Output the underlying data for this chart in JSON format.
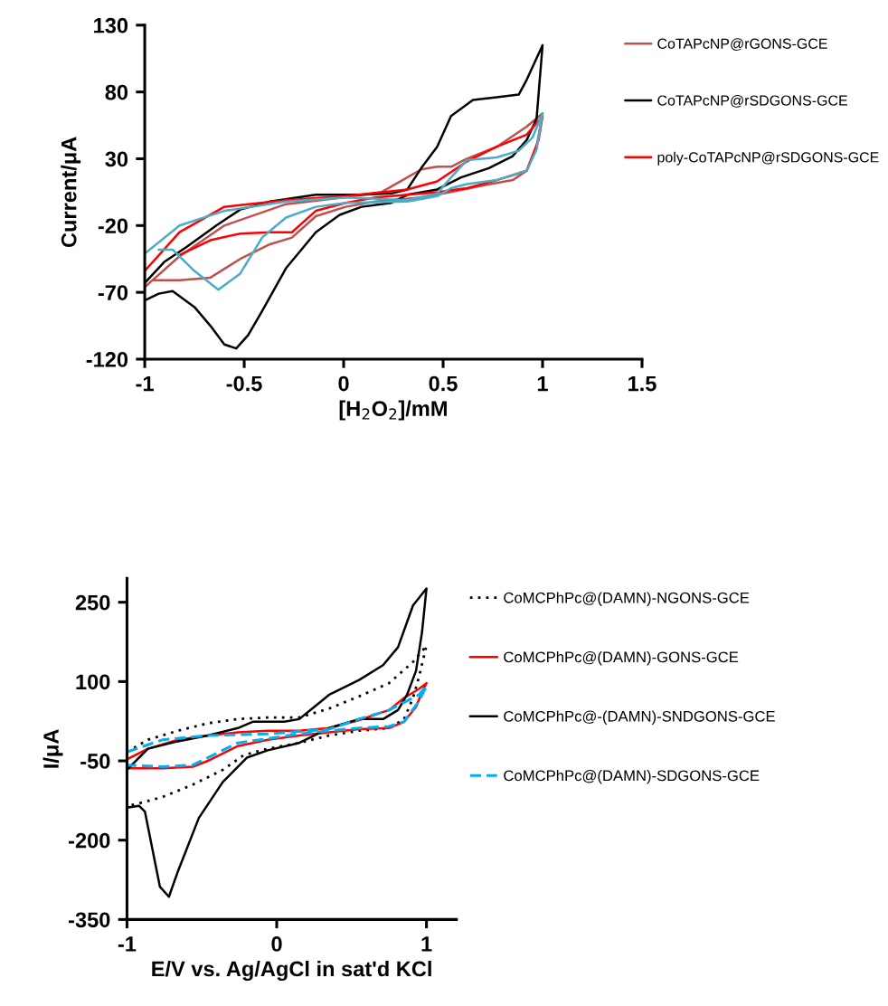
{
  "chart_data": [
    {
      "type": "line",
      "xlabel": "[H$_{2}$O$_{2}$]/mM",
      "ylabel": "Current/μA",
      "xlim": [
        -1,
        1.5
      ],
      "xticks": [
        -1,
        -0.5,
        0,
        0.5,
        1,
        1.5
      ],
      "ylim": [
        -120,
        130
      ],
      "yticks": [
        -120,
        -70,
        -20,
        30,
        80,
        130
      ],
      "grid": false,
      "legend": "right",
      "marker": "none",
      "series": [
        {
          "name": "CoTAPcNP@rGONS-GCE",
          "color": "#c0504d",
          "line_style": "solid",
          "x": [
            -1,
            -0.825,
            -0.6,
            -0.29,
            0.0,
            0.19,
            0.32,
            0.39,
            0.47,
            0.54,
            0.62,
            0.77,
            0.92,
            1.0,
            0.97,
            0.92,
            0.85,
            0.7,
            0.54,
            0.39,
            0.16,
            0.01,
            -0.14,
            -0.26,
            -0.37,
            -0.52,
            -0.67,
            -0.825,
            -0.96
          ],
          "values": [
            -66,
            -43,
            -20,
            -4,
            1,
            5,
            16,
            22,
            24,
            24,
            30,
            39,
            54,
            64,
            39,
            21,
            14,
            10,
            5,
            1,
            -2,
            -6,
            -13,
            -29,
            -34,
            -45,
            -59,
            -61,
            -61
          ]
        },
        {
          "name": "CoTAPcNP@rSDGONS-GCE",
          "color": "#000000",
          "line_style": "solid",
          "x": [
            -1,
            -0.9,
            -0.79,
            -0.64,
            -0.52,
            -0.37,
            -0.14,
            0.09,
            0.24,
            0.32,
            0.39,
            0.47,
            0.54,
            0.65,
            0.77,
            0.88,
            0.92,
            1.0,
            0.97,
            0.92,
            0.85,
            0.73,
            0.59,
            0.47,
            0.32,
            0.24,
            0.09,
            -0.02,
            -0.14,
            -0.29,
            -0.41,
            -0.48,
            -0.54,
            -0.6,
            -0.67,
            -0.75,
            -0.86,
            -0.93,
            -1
          ],
          "values": [
            -63,
            -47,
            -36,
            -20,
            -8,
            -2,
            3,
            3,
            4,
            7,
            23,
            39,
            62,
            74,
            76,
            78,
            89,
            115,
            60,
            44,
            32,
            23,
            16,
            7,
            3,
            -3,
            -6,
            -12,
            -25,
            -52,
            -84,
            -102,
            -112,
            -109,
            -95,
            -81,
            -69,
            -71,
            -76
          ]
        },
        {
          "name": "poly-CoTAPcNP@rSDGONS-GCE",
          "color": "#ff0000",
          "line_style": "solid",
          "x": [
            -1,
            -0.825,
            -0.6,
            -0.29,
            0.01,
            0.32,
            0.47,
            0.62,
            0.77,
            0.92,
            1.0,
            0.98,
            0.92,
            0.77,
            0.62,
            0.47,
            0.32,
            0.16,
            0.01,
            -0.14,
            -0.26,
            -0.37,
            -0.52,
            -0.67,
            -0.825
          ],
          "values": [
            -54,
            -25,
            -6,
            -1,
            2,
            7,
            13,
            28,
            39,
            48,
            62,
            44,
            21,
            14,
            8,
            5,
            3,
            1,
            -3,
            -9,
            -25,
            -25,
            -26,
            -31,
            -42
          ]
        },
        {
          "color": "#4bacc6",
          "line_style": "solid",
          "x": [
            -1,
            -0.825,
            -0.6,
            -0.29,
            0.01,
            0.32,
            0.47,
            0.54,
            0.62,
            0.77,
            0.88,
            0.95,
            1.0,
            0.97,
            0.92,
            0.77,
            0.62,
            0.54,
            0.47,
            0.32,
            0.01,
            -0.14,
            -0.29,
            -0.41,
            -0.52,
            -0.63,
            -0.75,
            -0.86,
            -0.93
          ],
          "values": [
            -41,
            -20,
            -9,
            -2,
            1,
            -1,
            4,
            16,
            29,
            31,
            36,
            46,
            64,
            37,
            21,
            14,
            11,
            8,
            2,
            -2,
            -3,
            -6,
            -14,
            -29,
            -56,
            -68,
            -54,
            -38,
            -38
          ]
        }
      ]
    },
    {
      "type": "line",
      "xlabel": "E/V vs. Ag/AgCl in sat'd KCl",
      "ylabel": "I/μA",
      "xlim": [
        -1,
        1.2
      ],
      "xticks": [
        -1,
        0,
        1
      ],
      "ylim": [
        -350,
        295
      ],
      "yticks": [
        -350,
        -200,
        -50,
        100,
        250
      ],
      "grid": false,
      "legend": "right",
      "marker": "none",
      "series": [
        {
          "name": "CoMCPhPc@(DAMN)-NGONS-GCE",
          "color": "#000000",
          "line_style": "dotted",
          "x": [
            -1,
            -0.86,
            -0.66,
            -0.46,
            -0.26,
            -0.06,
            0.15,
            0.35,
            0.55,
            0.75,
            0.91,
            1.0,
            0.95,
            0.91,
            0.85,
            0.75,
            0.55,
            0.35,
            0.15,
            -0.06,
            -0.22,
            -0.36,
            -0.56,
            -0.76,
            -0.9,
            -0.99
          ],
          "values": [
            -33,
            -10,
            7,
            21,
            29,
            32,
            32,
            49,
            72,
            97,
            137,
            168,
            109,
            69,
            29,
            12,
            7,
            -2,
            -16,
            -27,
            -39,
            -67,
            -95,
            -118,
            -129,
            -135
          ]
        },
        {
          "name": "CoMCPhPc@(DAMN)-GONS-GCE",
          "color": "#ff0000",
          "line_style": "solid",
          "x": [
            -1,
            -0.86,
            -0.66,
            -0.46,
            -0.26,
            -0.06,
            0.15,
            0.35,
            0.55,
            0.75,
            0.85,
            0.95,
            1.0,
            0.97,
            0.93,
            0.85,
            0.75,
            0.55,
            0.35,
            0.15,
            -0.06,
            -0.26,
            -0.46,
            -0.56,
            -0.76,
            -1
          ],
          "values": [
            -47,
            -27,
            -10,
            -2,
            4,
            7,
            7,
            12,
            27,
            46,
            69,
            86,
            97,
            80,
            52,
            24,
            12,
            10,
            4,
            -2,
            -10,
            -22,
            -50,
            -61,
            -64,
            -64
          ]
        },
        {
          "name": "CoMCPhPc@-(DAMN)-SNDGONS-GCE",
          "color": "#000000",
          "line_style": "solid",
          "x": [
            -1,
            -0.86,
            -0.66,
            -0.46,
            -0.26,
            -0.16,
            0.05,
            0.15,
            0.25,
            0.35,
            0.55,
            0.71,
            0.81,
            0.91,
            1.0,
            0.97,
            0.93,
            0.87,
            0.81,
            0.71,
            0.55,
            0.35,
            0.15,
            -0.06,
            -0.2,
            -0.36,
            -0.52,
            -0.66,
            -0.72,
            -0.78,
            -0.84,
            -0.88,
            -0.92,
            -0.99
          ],
          "values": [
            -67,
            -27,
            -13,
            -2,
            12,
            24,
            24,
            29,
            52,
            75,
            103,
            131,
            165,
            244,
            276,
            193,
            120,
            75,
            46,
            29,
            29,
            12,
            -16,
            -30,
            -44,
            -90,
            -158,
            -259,
            -307,
            -288,
            -203,
            -146,
            -135,
            -138
          ]
        },
        {
          "name": "CoMCPhPc@(DAMN)-SDGONS-GCE",
          "color": "#00b0f0",
          "line_style": "dashed",
          "x": [
            -1,
            -0.76,
            -0.46,
            -0.06,
            0.35,
            0.55,
            0.75,
            0.95,
            1.0,
            0.95,
            0.85,
            0.75,
            0.55,
            0.35,
            0.15,
            -0.06,
            -0.26,
            -0.46,
            -0.56,
            -0.76,
            -1
          ],
          "values": [
            -33,
            -10,
            -2,
            1,
            10,
            29,
            46,
            75,
            92,
            63,
            24,
            15,
            12,
            7,
            1,
            -8,
            -16,
            -44,
            -58,
            -61,
            -58
          ]
        }
      ]
    }
  ]
}
